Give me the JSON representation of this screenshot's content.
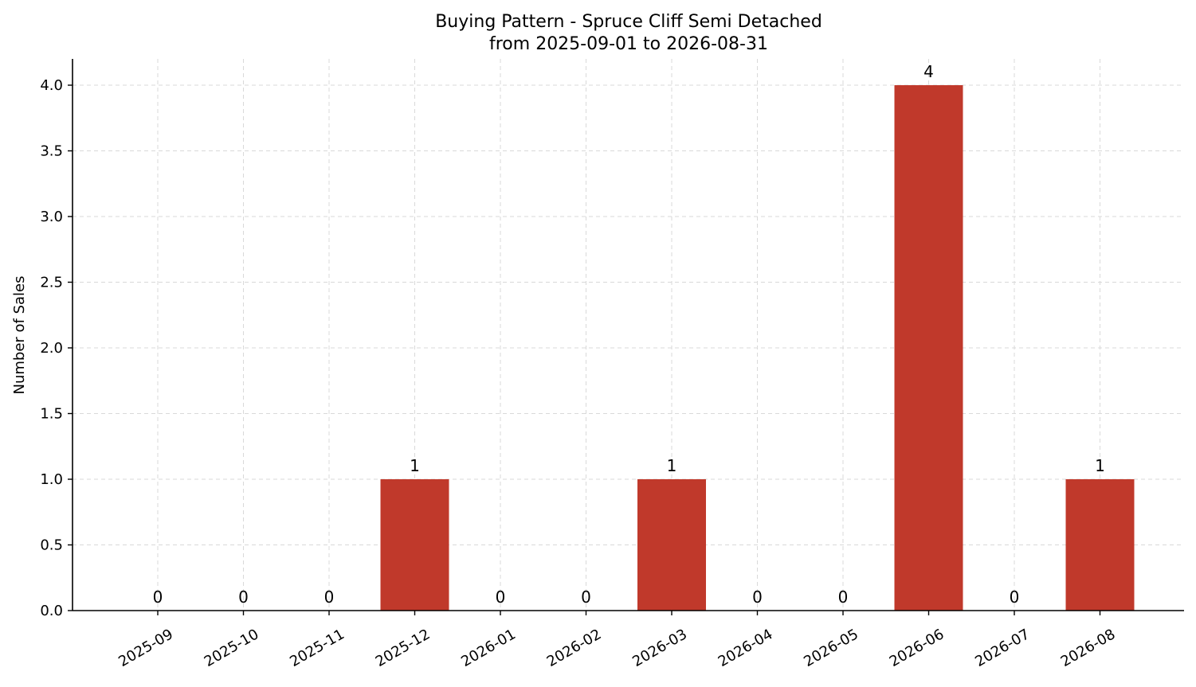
{
  "chart_data": {
    "type": "bar",
    "title": "Buying Pattern - Spruce Cliff Semi Detached",
    "subtitle": "from 2025-09-01 to 2026-08-31",
    "xlabel": "",
    "ylabel": "Number of Sales",
    "categories": [
      "2025-09",
      "2025-10",
      "2025-11",
      "2025-12",
      "2026-01",
      "2026-02",
      "2026-03",
      "2026-04",
      "2026-05",
      "2026-06",
      "2026-07",
      "2026-08"
    ],
    "values": [
      0,
      0,
      0,
      1,
      0,
      0,
      1,
      0,
      0,
      4,
      0,
      1
    ],
    "data_labels": [
      "0",
      "0",
      "0",
      "1",
      "0",
      "0",
      "1",
      "0",
      "0",
      "4",
      "0",
      "1"
    ],
    "ylim": [
      0,
      4.2
    ],
    "yticks": [
      0,
      0.5,
      1,
      1.5,
      2,
      2.5,
      3,
      3.5,
      4
    ],
    "ytick_labels": [
      "0.0",
      "0.5",
      "1.0",
      "1.5",
      "2.0",
      "2.5",
      "3.0",
      "3.5",
      "4.0"
    ],
    "bar_color": "#c0392b",
    "grid": true,
    "legend": "none"
  }
}
